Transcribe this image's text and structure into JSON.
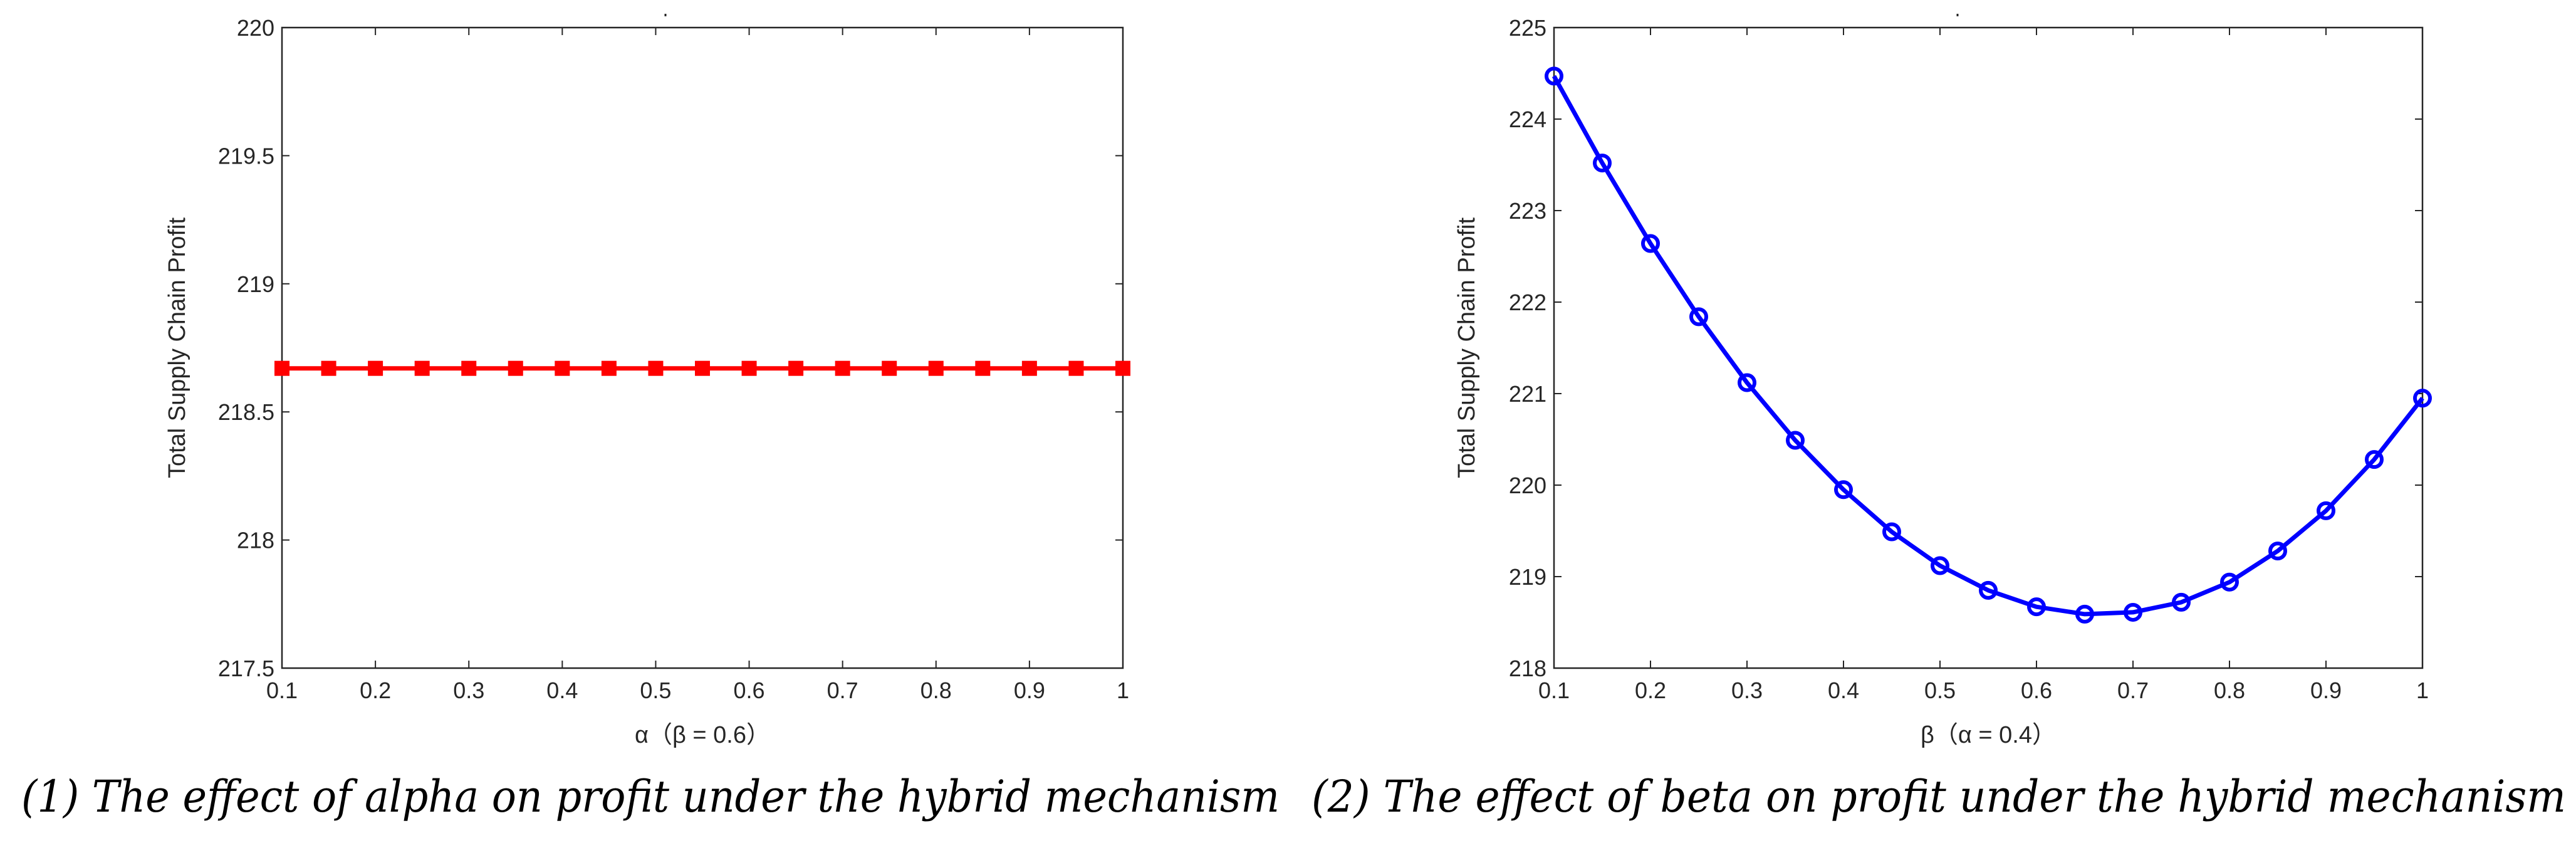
{
  "chart_data": [
    {
      "type": "line",
      "title": "",
      "caption": "(1) The effect of alpha on profit under the hybrid mechanism",
      "xlabel": "α（β = 0.6）",
      "ylabel": "Total Supply Chain Profit",
      "xlim": [
        0.1,
        1
      ],
      "ylim": [
        217.5,
        220
      ],
      "xticks": [
        0.1,
        0.2,
        0.3,
        0.4,
        0.5,
        0.6,
        0.7,
        0.8,
        0.9,
        1
      ],
      "xtick_labels": [
        "0.1",
        "0.2",
        "0.3",
        "0.4",
        "0.5",
        "0.6",
        "0.7",
        "0.8",
        "0.9",
        "1"
      ],
      "yticks": [
        217.5,
        218,
        218.5,
        219,
        219.5,
        220
      ],
      "ytick_labels": [
        "217.5",
        "218",
        "218.5",
        "219",
        "219.5",
        "220"
      ],
      "series": [
        {
          "name": "Total Supply Chain Profit",
          "color": "#ff0000",
          "marker": "square",
          "x": [
            0.1,
            0.15,
            0.2,
            0.25,
            0.3,
            0.35,
            0.4,
            0.45,
            0.5,
            0.55,
            0.6,
            0.65,
            0.7,
            0.75,
            0.8,
            0.85,
            0.9,
            0.95,
            1.0
          ],
          "values": [
            218.67,
            218.67,
            218.67,
            218.67,
            218.67,
            218.67,
            218.67,
            218.67,
            218.67,
            218.67,
            218.67,
            218.67,
            218.67,
            218.67,
            218.67,
            218.67,
            218.67,
            218.67,
            218.67
          ]
        }
      ]
    },
    {
      "type": "line",
      "title": "",
      "caption": "(2) The effect of beta on profit under the hybrid mechanism",
      "xlabel": "β（α = 0.4）",
      "ylabel": "Total Supply Chain Profit",
      "xlim": [
        0.1,
        1
      ],
      "ylim": [
        218,
        225
      ],
      "xticks": [
        0.1,
        0.2,
        0.3,
        0.4,
        0.5,
        0.6,
        0.7,
        0.8,
        0.9,
        1
      ],
      "xtick_labels": [
        "0.1",
        "0.2",
        "0.3",
        "0.4",
        "0.5",
        "0.6",
        "0.7",
        "0.8",
        "0.9",
        "1"
      ],
      "yticks": [
        218,
        219,
        220,
        221,
        222,
        223,
        224,
        225
      ],
      "ytick_labels": [
        "218",
        "219",
        "220",
        "221",
        "222",
        "223",
        "224",
        "225"
      ],
      "series": [
        {
          "name": "Total Supply Chain Profit",
          "color": "#0000ff",
          "marker": "circle",
          "x": [
            0.1,
            0.15,
            0.2,
            0.25,
            0.3,
            0.35,
            0.4,
            0.45,
            0.5,
            0.55,
            0.6,
            0.65,
            0.7,
            0.75,
            0.8,
            0.85,
            0.9,
            0.95,
            1.0
          ],
          "values": [
            224.47,
            223.52,
            222.64,
            221.84,
            221.12,
            220.49,
            219.95,
            219.49,
            219.12,
            218.85,
            218.67,
            218.59,
            218.61,
            218.72,
            218.94,
            219.28,
            219.72,
            220.28,
            220.95
          ]
        }
      ]
    }
  ]
}
